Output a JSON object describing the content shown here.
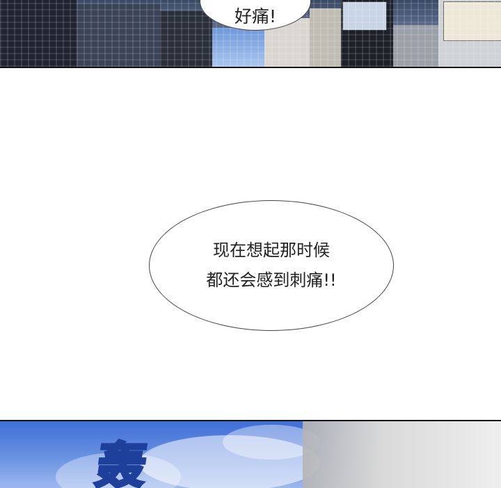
{
  "top_panel": {
    "speech_bubble": "好痛!"
  },
  "middle": {
    "speech_bubble_lines": [
      "现在想起那时候",
      "都还会感到刺痛!!"
    ]
  },
  "bottom_panel": {
    "sound_effect": "轰"
  }
}
